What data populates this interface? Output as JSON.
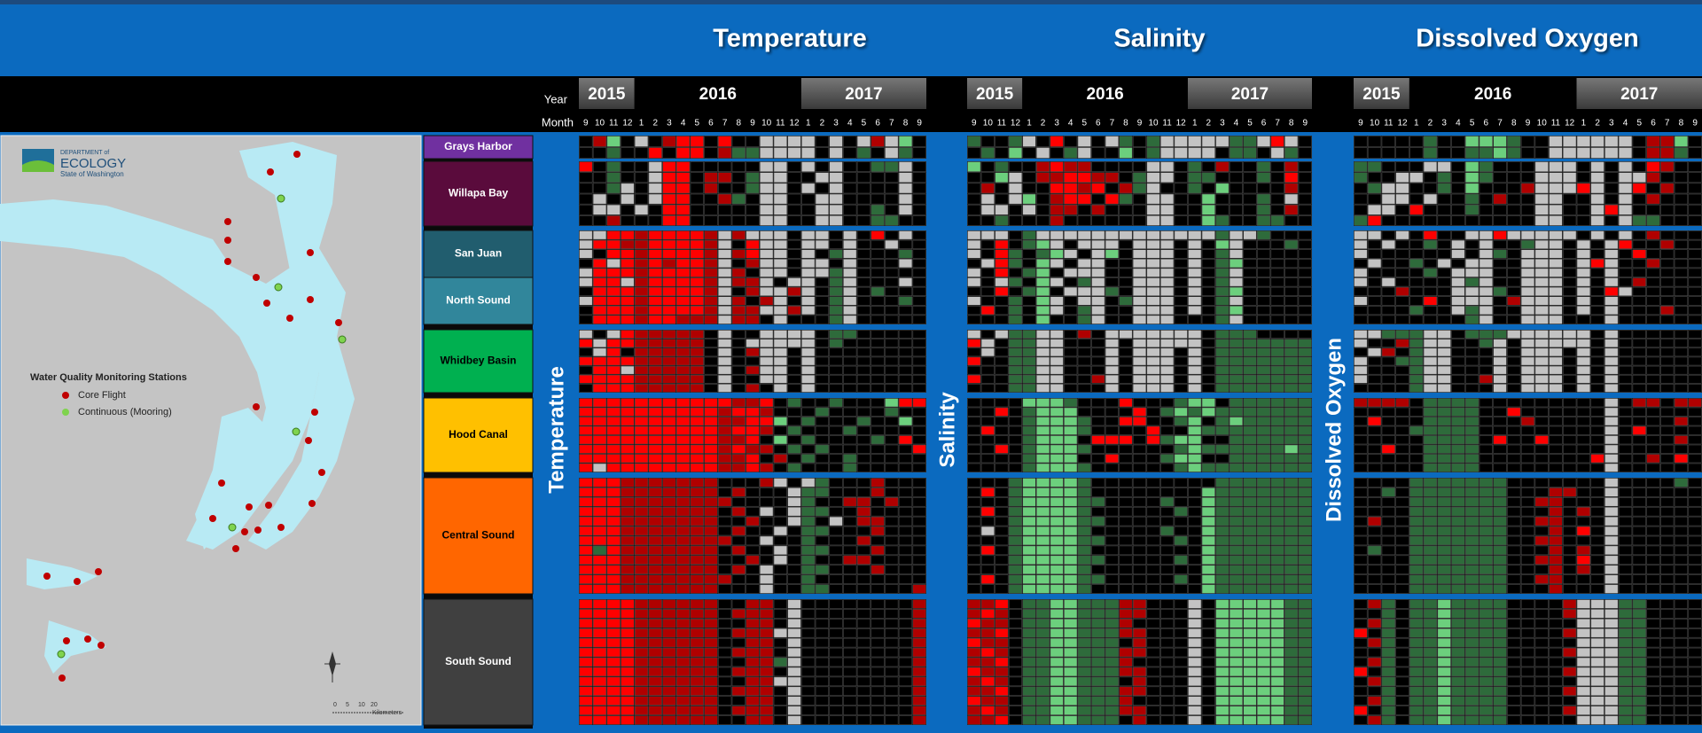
{
  "header": {
    "titles": [
      "Temperature",
      "Salinity",
      "Dissolved Oxygen"
    ],
    "year_label": "Year",
    "month_label": "Month",
    "years": [
      "2015",
      "2016",
      "2017"
    ],
    "months": [
      "9",
      "10",
      "11",
      "12",
      "1",
      "2",
      "3",
      "4",
      "5",
      "6",
      "7",
      "8",
      "9",
      "10",
      "11",
      "12",
      "1",
      "2",
      "3",
      "4",
      "5",
      "6",
      "7",
      "8",
      "9"
    ]
  },
  "map": {
    "logo": [
      "DEPARTMENT of",
      "ECOLOGY",
      "State of Washington"
    ],
    "legend_title": "Water Quality Monitoring Stations",
    "legend_items": [
      {
        "name": "Core Flight",
        "color": "#c00000"
      },
      {
        "name": "Continuous (Mooring)",
        "color": "#7fd34e"
      }
    ],
    "scale_labels": [
      "0",
      "5",
      "10",
      "20"
    ],
    "scale_unit": "Kilometers"
  },
  "cell_colors": {
    "K": "#000000",
    "R": "#ff0000",
    "D": "#b00000",
    "G": "#2e6b3b",
    "L": "#6ccf7d",
    "W": "#c3c3c3"
  },
  "regions": [
    [
      {
        "name": "Grays Harbor",
        "color": "#7030a0",
        "text_color": "#ffffff"
      }
    ],
    [
      {
        "name": "Willapa Bay",
        "color": "#5a0b3c",
        "text_color": "#ffffff"
      }
    ],
    [
      {
        "name": "San Juan",
        "color": "#215d6e",
        "text_color": "#ffffff"
      },
      {
        "name": "North Sound",
        "color": "#31869b",
        "text_color": "#ffffff"
      }
    ],
    [
      {
        "name": "Whidbey Basin",
        "color": "#00b050",
        "text_color": "#000000"
      }
    ],
    [
      {
        "name": "Hood Canal",
        "color": "#ffc000",
        "text_color": "#000000"
      }
    ],
    [
      {
        "name": "Central Sound",
        "color": "#ff6600",
        "text_color": "#000000"
      }
    ],
    [
      {
        "name": "South Sound",
        "color": "#404040",
        "text_color": "#ffffff"
      }
    ]
  ],
  "panels": [
    {
      "title": "Temperature",
      "blocks": [
        [
          "KDLKWKDRRKRKKWWWWKWKWDWLK",
          "KKGKKRKRRKDGGWWWWKWKGKWGK"
        ],
        [
          "RKGKKWRRKKKKKWWKWKWKKGGWK",
          "KKGKKWRRKDDKGWWKKWWKKKKWK",
          "KKGWKWRRKDKKGWWKWKWKKKKWK",
          "KWKWKWRRKKDGKWWKKWWKKKKWK",
          "KWWKWKRRKKKKKWWKKWWKKGKWK",
          "KKDKKKRRKKKKKWWKKWWKKGGKK"
        ],
        [
          "WWRRDRRRRDWDWWWKWWKWKRKWK",
          "WRRDDRRRRDWKRWWKWWKWKKWKK",
          "WKRRDRRRRDWDRWWKWKGWKKKGK",
          "KRWRDRDRRDWKDWWKWWKWKKKWK",
          "WRRRDRRRRDWDKWWKWWGWKKKKK",
          "WRRWDRRRRDWDDWKWWKGWKKKWK",
          "KRRRDRRRRDWKDWWDWKGWKGKKK",
          "WRRRDRRRRDWDKDWKWKGWKKKGK",
          "KRRRDRRRRDWDDWWDWKGWKKKKK",
          "KRRRDRRDDDWDDKWKKKGWKKKKK"
        ],
        [
          "WKWRDDDDDKWKKWWWWKGGKKKKK",
          "RWRRDDDDDKWKWWWWWKGKKKKKK",
          "KWRKDDDDDKWKDWWKWKKKKKKKK",
          "RRRRDDDDDKWKKWWKWKKKKKKKK",
          "KRRWDDDDDKWKDWWKWKKKKKKKK",
          "RRRRDDDDDKWKKWWKWKKKKKKKK",
          "KRRRDDDDDKWKDKWKWKKKKKKKK"
        ],
        [
          "RRRRRRRRRRRDDRKGKKGKKKLRR",
          "RRRRRRRRRRDRRDKKKGKKKKGKK",
          "RRRRRRRRRRDDRRLKGKKKGKKLK",
          "RRRRRRRRRRDRRDKGKKKGKKKKK",
          "RRRRRRRRRRDDRKLKGKKKKGKRK",
          "RRRRRRRRRRDRDDKGKGKKKKKKR",
          "RRRRRRRRRRDDRKDKGKKGKKKKK",
          "RWRRRRRRRRDDRDKGKKKGKKKKK"
        ],
        [
          "RRRDDDDDDDKKKDWKWGKKKDKKK",
          "RRRDDDDDDDKDKKKWGGKKKDKKK",
          "RRRDDDDDDDDKKKKWGKKDDKDKK",
          "RRRDDDDDDDKDKWKWGGKKDKKKK",
          "RRRDDDDDDDKKDKKWGKWKDDKKK",
          "RRRDDDDDDDKDKKWKGGKKKDKKK",
          "RRRDDDDDDDDKKWKKGKKKDKKKK",
          "RGRDDDDDDDKDKKWKGGKKKDKKK",
          "RRRDDDDDDDKKDKWKGKKDDKKKK",
          "RRRDDDDDDDKDKWKKGGKKKDKKK",
          "RRRDDDDDDDDKKWKKGKKKKKKKK",
          "RRRDDDDDDDKKKWKKGGKKKKKKD"
        ],
        [
          "RRRRDDDDDDKKDDKWKKKKKKKKD",
          "RRRRDDDDDDKDDDKWKKKKKKKKD",
          "RRRRDDDDDDKKDDKWKKKKKKKKD",
          "RRRRDDDDDDKDDDWWKKKKKKKKD",
          "RRRRDDDDDDKKDDKWKKKKKKKKD",
          "RRRRDDDDDDKDDDKWKKKKKKKKD",
          "RRRRDDDDDDKKDDGWKKKKKKKKD",
          "RRRRDDDDDDKDDDKWKKKKKKKKD",
          "RRRRDDDDDDKKDDWWKKKKKKKKD",
          "RRRRDDDDDDKDDDKWKKKKKKKKD",
          "RRRRDDDDDDKKDDKWKKKKKKKKD",
          "RRRRDDDDDDKDDDKWKKKKKKKKD",
          "RRRRDDDDDDKKDDKWKKKKKKKKD"
        ]
      ]
    },
    {
      "title": "Salinity",
      "blocks": [
        [
          "GKKGWKRKWKWGKGWWWWWGGWRWK",
          "KGKLKWKGWKKLKGWWWWKGGKWGK"
        ],
        [
          "LKGKKDRDDKKKKWWKGKDKKGKDK",
          "KKLWKDDRRDDKGWWKGGKKKGKRK",
          "KDKWKKRRDRKDGWKKGKLKKKKDK",
          "KWKWLKDRRKRGKWWKKLKKKGKWK",
          "KWWKWKDDKDKKKWWKKLKKKGKDK",
          "KKGKKKDKKKKKKWWKKLGKKGGKK"
        ],
        [
          "WWWKGWWWWWWWWWWWWWGWWGKKK",
          "WKRKGLWKWWWKWWWKWKLWKKKGK",
          "WKRGKGLWKWLKWWWKWKGWKKKKK",
          "KWRGKLWKWWKKWWWKWKGLKKKKK",
          "WKRKGLKWWWKKWWWKWKGWKKKKK",
          "WKWGKLWKGWKKWWWKWKGWKKKKK",
          "KKRKGLKWWWGKWWWKWKGLKKKKK",
          "WKKGKLWKWWKGWWWKWKGWKKKKK",
          "KRKGKLWKGWKKWWWKWKGLKKKKK",
          "KKKGKLKKGWKKWWWKKKGWKKKKK"
        ],
        [
          "WKWGGWWKDKWWWWWWWKGGGKKKK",
          "RWKGGWWKKKWKWWWWWKGGGGGGG",
          "KWKGGWWKKKWKWWWKWKGGGGGGG",
          "RKKGGWWKKKWKWWWKWKGGGGGGG",
          "KKKGGWWKKKWKWWWKWKGGGGGGG",
          "RKKGGWWKKDWKWWWKWKGGGGGGG",
          "KKKGGWWKKKWKWWWKWKGGGGGGG"
        ],
        [
          "KKKKLLLGKKKRKKKGLLKGGGGGG",
          "KKRKGLLLKKKKRKGLGLGGGGGGG",
          "KKKKGLLLGKKRRKKGLKGLGGGGG",
          "KRKKGLLLGKKKKRKKLGGGGGGGG",
          "KKKKGLLLKRRRKRGLLKKGGGGGG",
          "KKRKGLLLGKKKKKKGLGGGGGGLG",
          "KKKKGLLLKKRKKKGLLKKGGGGGG",
          "KKKKGLLLGKKKKKKGLGGGGGGGG"
        ],
        [
          "KKKGLLLLGKKKKKKKKKGGGGGGG",
          "KRKGLLLLGKKKKKKKKLGGGGGGG",
          "KKKGLLLLGGKKKKGKKLGGGGGGG",
          "KRKGLLLLGKKKKKKGKLGGGGGGG",
          "KKKGLLLLGGKKKKKKKLGGGGGGG",
          "KWKGLLLLGKKKKKGKKLGGGGGGG",
          "KKKGLLLLGGKKKKKGKLGGGGGGG",
          "KRKGLLLLGKKKKKKKKLGGGGGGG",
          "KKKGLLLLGGKKKKKGKLGGGGGGG",
          "KKKGLLLLGKKKKKKKKLGGGGGGG",
          "KRKGLLLLGGKKKKKGKLGGGGGGG",
          "KKKGLLLLGKKKKKKKKLGGGGGGG"
        ],
        [
          "DDRKGGLLGGGDDKKKWKLLLLLGG",
          "DRDKGGLLGGGDDKKKWKLLLLLGG",
          "RDDKGGLLGGGDKKKKWKLLLLLGG",
          "DDRKGGLLGGGDDKKKWKLLLLLGG",
          "RDDKGGLLGGGKDKKKWKLLLLLGG",
          "DRDKGGLLGGGDDKKKWKLLLLLGG",
          "DDRKGGLLGGGDKKKKWKLLLLLGG",
          "RDDKGGLLGGGDDKKKWKLLLLLGG",
          "DRDKGGLLGGGKDKKKWKLLLLLGG",
          "DDRKGGLLGGGDDKKKWKLLLLLGG",
          "RDDKGGLLGGGDKKKKWKLLLLLGG",
          "DRDKGGLLGGGDDKKKWKLLLLLGG",
          "DDRKGGLLGGGKDKKKWKLLLLLGG"
        ]
      ]
    },
    {
      "title": "Dissolved Oxygen",
      "blocks": [
        [
          "KKKKKGKKLLLGKKWWWWWWKDDLK",
          "KKKKKGKKGGLGKKWWWWWWKDDGK"
        ],
        [
          "GGKKKWWKLGKKKWWWKWKWKRDKK",
          "GKKWWKGKLGKKKWWWKWKWWDKKK",
          "KGWWKKGKLKKKDWWWRWKWRKDKK",
          "KKWWKWKKGKDKKWWKKWKWKDKKK",
          "KWWKRKKKGKKKKWWKKWRWKKKKK",
          "GRKKKKKKKKKKKWWKKWKWGGKKK"
        ],
        [
          "WWKWKRKKWWRWWWWWKWKWKDKKK",
          "WKWKKGKWKWKKGWWKWKWRKKDKK",
          "WKKKKKKWKWGKWWWKWKWKRKKKK",
          "KWKKGKWKWWKKWWWKWRWKKDKKK",
          "WKKKKGKWWWKKWWWKWKWKKKKKK",
          "WKWKKKKWGWKKWWWKWKWKDKKKK",
          "KKKDKKKWWWGKWWWKWKRWKKKKK",
          "WKKKKRKWWWKDWWWKWKWKKKKKK",
          "KKKKGKKWGWKKWWWKWKWKKKDKK",
          "KKKKKKKKGWKKWWWKKKWKKKKKK"
        ],
        [
          "WWGGGWWKGGGWWWWWWKWKKKKKK",
          "WKKDGWWKKGWKWWWWWKWKKKKKK",
          "KWDKGWWKKKWKWWWKWKWKKKKKK",
          "WKKGGWWKKKWKWWWKWKWKKKKKK",
          "WKKKGWWKKKWKWWWKWKWKKKKKK",
          "WKKKGWWKKDWKWWWKWKWKKKKKK",
          "KKKKGWWKKKWKWWWKWKWKKKKKK"
        ],
        [
          "DDDDKGGGGKKKKKKKKKWKDDKDD",
          "KKKKKGGGGKKRKKKKKKWKKKKKK",
          "KRKKKGGGGKKKDKKKKKWKKKKDK",
          "KKKKGGGGGKKKKKKKKKWKRKKKK",
          "KKKKKGGGGKRKKRKKKKWKKKKDK",
          "KKRKKGGGGKKKKKKKKKWKKKKKK",
          "KKKKKGGGGKKKKKKKKRWKKDKRK",
          "KKKKKGGGGKKKKKKKKKWKKKKKK"
        ],
        [
          "KKKKGGGGGGGKKKKKKKWKKKKGK",
          "KKGKGGGGGGGKKKDDKKWKKKKKK",
          "KKKKGGGGGGGKKDDKKKWKKKKKK",
          "KKKKGGGGGGGKKKDKDKWKKKKKK",
          "KDKKGGGGGGGKKDDKKKWKKKKKK",
          "KKKKGGGGGGGKKKDKRKWKKKKKK",
          "KKKKGGGGGGGKKDDKKKWKKKKKK",
          "KGKKGGGGGGGKKKDKDKWKKKKKK",
          "KKKKGGGGGGGKKDDKRKWKKKKKK",
          "KKKKGGGGGGGKKKDKDKWKKKKKK",
          "KKKKGGGGGGGKKDDKKKWKKKKKK",
          "KKKKGGGGGGGKKKDKKKWKKKKKK"
        ],
        [
          "KDGKGGLGGGGKKKKDWWWGGKKKK",
          "KKGKGGLGGGGKKKKDWWWGGKKKK",
          "KDGKGGLGGGGKKKKKWWWGGKKKK",
          "RKGKGGLGGGGKKKKDWWWGGKKKK",
          "KDGKGGLGGGGKKKKKWWWGGKKKK",
          "KKGKGGLGGGGKKKKDWWWGGKKKK",
          "KDGKGGLGGGGKKKKKWWWGGKKKK",
          "RKGKGGLGGGGKKKKDWWWGGKKKK",
          "KDGKGGLGGGGKKKKKWWWGGKKKK",
          "KKGKGGLGGGGKKKKDWWWGGKKKK",
          "KDGKGGLGGGGKKKKKWWWGGKKKK",
          "RKGKGGLGGGGKKKKDWWWGGKKKK",
          "KDGKGGLGGGGKKKKKWWWGGKKKK"
        ]
      ]
    }
  ]
}
